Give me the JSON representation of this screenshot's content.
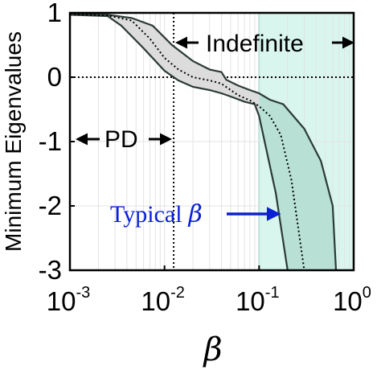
{
  "chart_data": {
    "type": "area",
    "xscale": "log",
    "xlim": [
      0.001,
      1
    ],
    "ylim": [
      -3,
      1
    ],
    "xlabel": "β",
    "ylabel": "Minimum Eigenvalues",
    "grid": true,
    "yticks": [
      {
        "value": 1,
        "label": "1"
      },
      {
        "value": 0,
        "label": "0"
      },
      {
        "value": -1,
        "label": "-1"
      },
      {
        "value": -2,
        "label": "-2"
      },
      {
        "value": -3,
        "label": "-3"
      }
    ],
    "xticks": [
      {
        "value": 0.001,
        "base": "10",
        "exp": "-3"
      },
      {
        "value": 0.01,
        "base": "10",
        "exp": "-2"
      },
      {
        "value": 0.1,
        "base": "10",
        "exp": "-1"
      },
      {
        "value": 1,
        "base": "10",
        "exp": "0"
      }
    ],
    "upper_bound": {
      "x": [
        0.001,
        0.0025,
        0.0045,
        0.0075,
        0.012,
        0.02,
        0.03,
        0.04,
        0.045,
        0.06,
        0.08,
        0.1,
        0.13,
        0.18,
        0.3,
        0.45,
        0.6,
        0.65
      ],
      "y": [
        0.98,
        0.97,
        0.92,
        0.8,
        0.5,
        0.25,
        0.12,
        0.08,
        -0.04,
        -0.13,
        -0.2,
        -0.25,
        -0.35,
        -0.42,
        -0.8,
        -1.3,
        -2.0,
        -3.0
      ]
    },
    "lower_bound": {
      "x": [
        0.001,
        0.0025,
        0.0035,
        0.006,
        0.01,
        0.014,
        0.02,
        0.03,
        0.04,
        0.05,
        0.07,
        0.09,
        0.1,
        0.15,
        0.2
      ],
      "y": [
        0.97,
        0.95,
        0.8,
        0.45,
        0.1,
        -0.05,
        -0.15,
        -0.2,
        -0.25,
        -0.3,
        -0.38,
        -0.42,
        -0.6,
        -1.8,
        -3.0
      ]
    },
    "median": {
      "x": [
        0.001,
        0.0025,
        0.0045,
        0.007,
        0.01,
        0.014,
        0.02,
        0.03,
        0.04,
        0.06,
        0.08,
        0.1,
        0.13,
        0.17,
        0.22,
        0.3
      ],
      "y": [
        0.98,
        0.96,
        0.88,
        0.6,
        0.3,
        0.12,
        0.0,
        -0.05,
        -0.1,
        -0.28,
        -0.36,
        -0.45,
        -0.6,
        -0.9,
        -1.6,
        -3.0
      ]
    },
    "colors": {
      "band_left": "#dcdcdc",
      "band_right": "#b8e0d5",
      "indefinite_region": "#d8f6ee",
      "indefinite_edge": "#44c8a8",
      "bound_line": "#2b3a35",
      "typical_text": "#0b20d6"
    },
    "indefinite_region_start": 0.1,
    "pd_boundary_x": 0.0125,
    "annotations": {
      "indefinite": "Indefinite",
      "pd": "PD",
      "typical": "Typical"
    }
  }
}
